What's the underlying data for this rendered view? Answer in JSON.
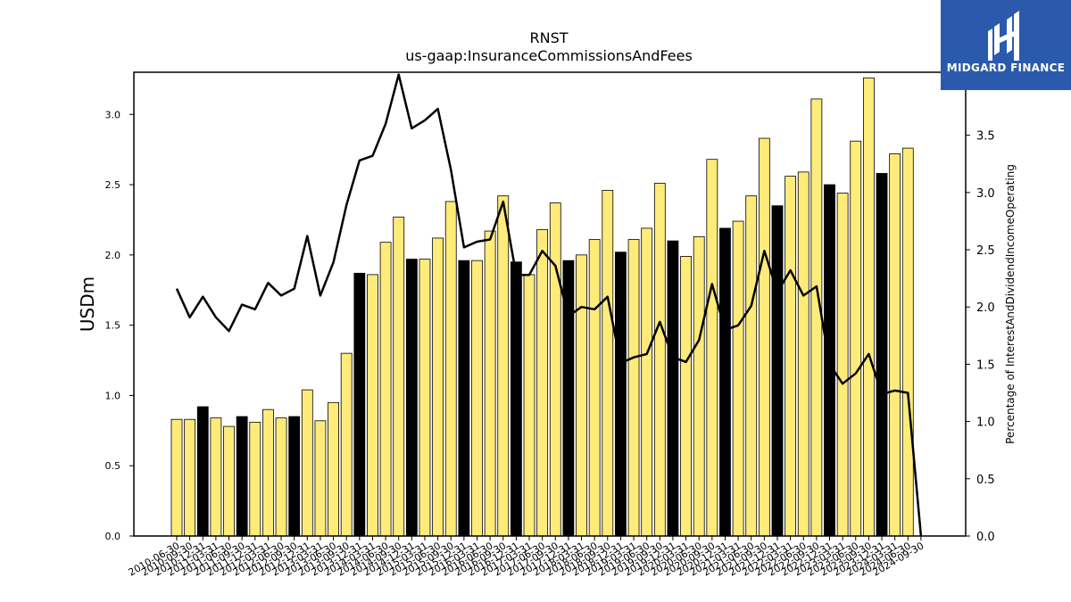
{
  "brand": {
    "name": "MIDGARD FINANCE",
    "color": "#2b5aad"
  },
  "chart_data": {
    "type": "bar",
    "title": "RNST",
    "subtitle": "us-gaap:InsuranceCommissionsAndFees",
    "ylabel": "USDm",
    "y2label": "Percentage of InterestAndDividendIncomeOperating",
    "ylim": [
      0,
      3.3
    ],
    "y2lim": [
      0,
      4.05
    ],
    "yticks": [
      "0.0",
      "0.5",
      "1.0",
      "1.5",
      "2.0",
      "2.5",
      "3.0"
    ],
    "y2ticks": [
      "0.0",
      "0.5",
      "1.0",
      "1.5",
      "2.0",
      "2.5",
      "3.0",
      "3.5",
      "4.0"
    ],
    "colors": {
      "quarter_bar": "#ffeb7a",
      "annual_bar": "#000000",
      "line": "#000000"
    },
    "categories": [
      "2010-06-30",
      "2010-09-30",
      "2010-12-31",
      "2011-03-31",
      "2011-06-30",
      "2011-09-30",
      "2011-12-31",
      "2012-03-31",
      "2012-06-30",
      "2012-09-30",
      "2012-12-31",
      "2013-03-31",
      "2013-06-30",
      "2013-09-30",
      "2013-12-31",
      "2014-03-31",
      "2014-06-30",
      "2014-09-30",
      "2014-12-31",
      "2015-03-31",
      "2015-06-30",
      "2015-09-30",
      "2015-12-31",
      "2016-03-31",
      "2016-06-30",
      "2016-09-30",
      "2016-12-31",
      "2017-03-31",
      "2017-06-30",
      "2017-09-30",
      "2017-12-31",
      "2018-03-31",
      "2018-06-30",
      "2018-09-30",
      "2018-12-31",
      "2019-03-31",
      "2019-06-30",
      "2019-09-30",
      "2019-12-31",
      "2020-03-31",
      "2020-06-30",
      "2020-09-30",
      "2020-12-31",
      "2021-03-31",
      "2021-06-30",
      "2021-09-30",
      "2021-12-31",
      "2022-03-31",
      "2022-06-30",
      "2022-09-30",
      "2022-12-31",
      "2023-03-31",
      "2023-06-30",
      "2023-09-30",
      "2023-12-31",
      "2024-03-31",
      "2024-06-30",
      "2024-09-30"
    ],
    "xtick_labels": [
      "2010-06-30",
      "2010-09-30",
      "2010-12-31",
      "2011-03-31",
      "2011-06-30",
      "2011-09-30",
      "2011-12-31",
      "2012-03-31",
      "2012-06-30",
      "2012-09-30",
      "2012-12-31",
      "2013-03-31",
      "2013-06-30",
      "2013-09-30",
      "2013-12-31",
      "2014-03-31",
      "2014-06-30",
      "2014-09-30",
      "2014-12-31",
      "2015-03-31",
      "2015-06-30",
      "2015-09-30",
      "2015-12-31",
      "2016-03-31",
      "2016-06-30",
      "2016-09-30",
      "2016-12-31",
      "2017-03-31",
      "2017-06-30",
      "2017-09-30",
      "2017-12-31",
      "2018-03-31",
      "2018-06-30",
      "2018-09-30",
      "2018-12-31",
      "2019-03-31",
      "2019-06-30",
      "2019-09-30",
      "2019-12-31",
      "2020-03-31",
      "2020-06-30",
      "2020-09-30",
      "2020-12-31",
      "2021-03-31",
      "2021-06-30",
      "2021-09-30",
      "2021-12-31",
      "2022-03-31",
      "2022-06-30",
      "2022-09-30",
      "2022-12-31",
      "2023-03-31",
      "2023-06-30",
      "2023-09-30",
      "2023-12-31",
      "2024-03-31",
      "2024-06-30",
      "2024-09-30"
    ],
    "series": [
      {
        "values": [
          0.83,
          0.83,
          0.92,
          0.84,
          0.78,
          0.85,
          0.81,
          0.9,
          0.84,
          0.85,
          1.04,
          0.82,
          0.95,
          1.3,
          1.87,
          1.86,
          2.09,
          2.27,
          1.97,
          1.97,
          2.12,
          2.38,
          1.96,
          1.96,
          2.17,
          2.42,
          1.95,
          1.86,
          2.18,
          2.37,
          1.96,
          2.0,
          2.11,
          2.46,
          2.02,
          2.11,
          2.19,
          2.51,
          2.1,
          1.99,
          2.13,
          2.68,
          2.19,
          2.24,
          2.42,
          2.83,
          2.35,
          2.56,
          2.59,
          3.11,
          2.5,
          2.44,
          2.81,
          3.26,
          2.58,
          2.72,
          2.76,
          null
        ],
        "annual": [
          false,
          false,
          true,
          false,
          false,
          true,
          false,
          false,
          false,
          true,
          false,
          false,
          false,
          false,
          true,
          false,
          false,
          false,
          true,
          false,
          false,
          false,
          true,
          false,
          false,
          false,
          true,
          false,
          false,
          false,
          true,
          false,
          false,
          false,
          true,
          false,
          false,
          false,
          true,
          false,
          false,
          false,
          true,
          false,
          false,
          false,
          true,
          false,
          false,
          false,
          true,
          false,
          false,
          false,
          true,
          false,
          false,
          false
        ]
      },
      {
        "axis": "right",
        "values": [
          2.16,
          1.91,
          2.09,
          1.91,
          1.79,
          2.02,
          1.98,
          2.21,
          2.1,
          2.16,
          2.62,
          2.1,
          2.39,
          2.89,
          3.28,
          3.32,
          3.6,
          4.03,
          3.56,
          3.63,
          3.73,
          3.2,
          2.52,
          2.57,
          2.59,
          2.92,
          2.28,
          2.28,
          2.49,
          2.36,
          1.92,
          2.0,
          1.98,
          2.09,
          1.51,
          1.56,
          1.59,
          1.87,
          1.56,
          1.52,
          1.71,
          2.2,
          1.8,
          1.84,
          2.01,
          2.49,
          2.13,
          2.32,
          2.1,
          2.18,
          1.5,
          1.33,
          1.42,
          1.59,
          1.24,
          1.27,
          1.25,
          0.0
        ]
      }
    ]
  }
}
